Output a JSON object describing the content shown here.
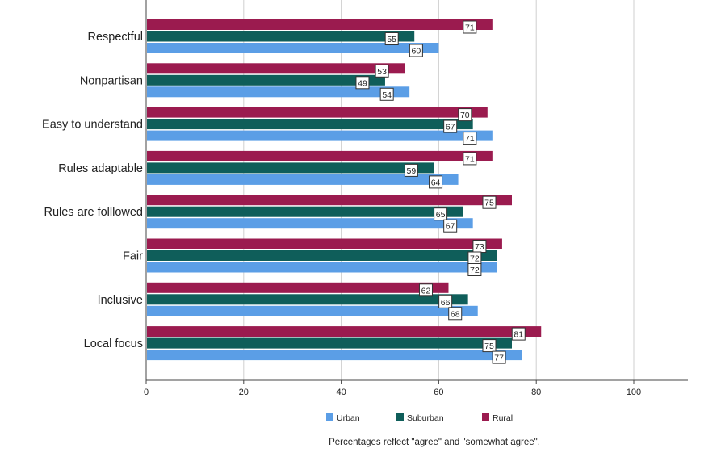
{
  "chart_data": {
    "type": "bar",
    "orientation": "horizontal",
    "categories": [
      "Respectful",
      "Nonpartisan",
      "Easy to understand",
      "Rules adaptable",
      "Rules are folllowed",
      "Fair",
      "Inclusive",
      "Local focus"
    ],
    "series": [
      {
        "name": "Rural",
        "color": "#9b1b4f",
        "values": [
          71,
          53,
          70,
          71,
          75,
          73,
          62,
          81
        ]
      },
      {
        "name": "Suburban",
        "color": "#0f5e5a",
        "values": [
          55,
          49,
          67,
          59,
          65,
          72,
          66,
          75
        ]
      },
      {
        "name": "Urban",
        "color": "#5b9ee6",
        "values": [
          60,
          54,
          71,
          64,
          67,
          72,
          68,
          77
        ]
      }
    ],
    "legend_order": [
      "Urban",
      "Suburban",
      "Rural"
    ],
    "legend_position": "bottom",
    "xlim": [
      0,
      110
    ],
    "x_ticks": [
      0,
      20,
      40,
      60,
      80,
      100
    ],
    "grid": true,
    "note": "Percentages reflect \"agree\" and \"somewhat agree\"."
  }
}
